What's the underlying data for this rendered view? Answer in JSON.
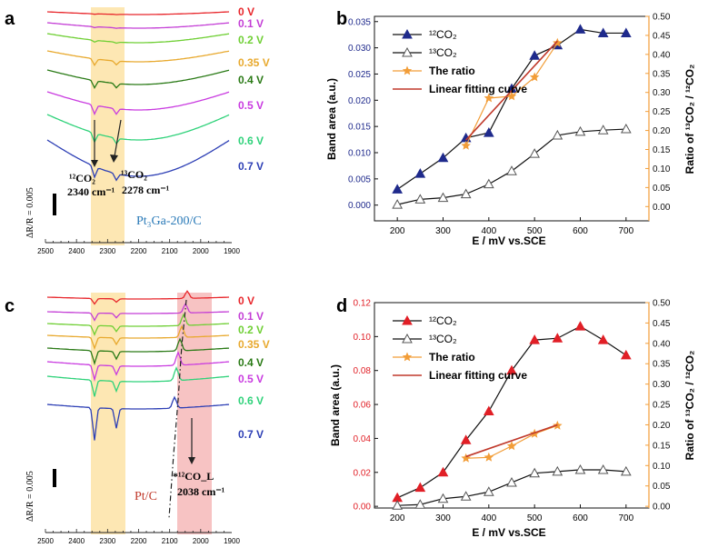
{
  "panels": {
    "a": {
      "letter": "a",
      "voltages": [
        "0 V",
        "0.1 V",
        "0.2 V",
        "0.35 V",
        "0.4 V",
        "0.5 V",
        "0.6 V",
        "0.7 V"
      ],
      "voltage_colors": [
        "#e8262b",
        "#c43fd6",
        "#6fcf34",
        "#e8a92e",
        "#2a7a16",
        "#c93be0",
        "#2fd27a",
        "#2d3fb5"
      ],
      "peak1": {
        "species": "¹²CO₂",
        "position": "2340 cm⁻¹"
      },
      "peak2": {
        "species": "¹³CO₂",
        "position": "2278 cm⁻¹"
      },
      "scale_label": "ΔR/R = 0.005",
      "sample_label": "Pt₃Ga-200/C",
      "x_ticks": [
        "2500",
        "2400",
        "2300",
        "2200",
        "2100",
        "2000",
        "1900"
      ]
    },
    "c": {
      "letter": "c",
      "voltages": [
        "0 V",
        "0.1 V",
        "0.2 V",
        "0.35 V",
        "0.4 V",
        "0.5 V",
        "0.6 V",
        "0.7 V"
      ],
      "voltage_colors": [
        "#e8262b",
        "#c43fd6",
        "#6fcf34",
        "#e8a92e",
        "#2a7a16",
        "#c93be0",
        "#2fd27a",
        "#2d3fb5"
      ],
      "peak": {
        "species": "*¹²CO_L",
        "position": "2038 cm⁻¹"
      },
      "scale_label": "ΔR/R = 0.005",
      "sample_label": "Pt/C",
      "x_ticks": [
        "2500",
        "2400",
        "2300",
        "2200",
        "2100",
        "2000",
        "1900"
      ]
    }
  },
  "colors": {
    "series_b": "#1f2a8c",
    "series_d": "#e11f26",
    "ratio": "#f29d38",
    "fit": "#c0392b",
    "highlight_yellow": "#fde7b3",
    "highlight_red": "#f7c3c3"
  },
  "chart_data": [
    {
      "panel": "b",
      "type": "line",
      "xlabel": "E / mV vs.SCE",
      "ylabel": "Band area (a.u.)",
      "y2label": "Ratio of ¹³CO₂ / ¹²CO₂",
      "x": [
        200,
        250,
        300,
        350,
        400,
        450,
        500,
        550,
        600,
        650,
        700
      ],
      "xlim": [
        150,
        750
      ],
      "x_ticks": [
        200,
        300,
        400,
        500,
        600,
        700
      ],
      "ylim": [
        -0.003,
        0.036
      ],
      "y_ticks": [
        "0.000",
        "0.005",
        "0.010",
        "0.015",
        "0.020",
        "0.025",
        "0.030",
        "0.035"
      ],
      "y2lim": [
        -0.0375,
        0.5
      ],
      "y2_ticks": [
        "0.00",
        "0.05",
        "0.10",
        "0.15",
        "0.20",
        "0.25",
        "0.30",
        "0.35",
        "0.40",
        "0.45",
        "0.50"
      ],
      "legend_position": "top-left",
      "series": [
        {
          "name": "¹²CO₂",
          "marker": "filled-triangle",
          "axis": "left",
          "values": [
            0.003,
            0.006,
            0.009,
            0.0128,
            0.0138,
            0.0222,
            0.0285,
            0.0305,
            0.0335,
            0.0328,
            0.0328
          ]
        },
        {
          "name": "¹³CO₂",
          "marker": "open-triangle",
          "axis": "left",
          "values": [
            0.0001,
            0.0011,
            0.0014,
            0.0021,
            0.004,
            0.0065,
            0.0098,
            0.0133,
            0.014,
            0.0143,
            0.0145
          ]
        }
      ],
      "ratio": {
        "name": "The ratio",
        "x": [
          350,
          400,
          450,
          500,
          550
        ],
        "values": [
          0.16,
          0.285,
          0.29,
          0.34,
          0.43
        ]
      },
      "fit": {
        "name": "Linear fitting curve",
        "x": [
          350,
          550
        ],
        "values": [
          0.175,
          0.435
        ]
      }
    },
    {
      "panel": "d",
      "type": "line",
      "xlabel": "E / mV vs.SCE",
      "ylabel": "Band area (a.u.)",
      "y2label": "Ratio of ¹³CO₂ / ¹²CO₂",
      "x": [
        200,
        250,
        300,
        350,
        400,
        450,
        500,
        550,
        600,
        650,
        700
      ],
      "xlim": [
        150,
        750
      ],
      "x_ticks": [
        200,
        300,
        400,
        500,
        600,
        700
      ],
      "ylim": [
        -0.001,
        0.12
      ],
      "y_ticks": [
        "0.00",
        "0.02",
        "0.04",
        "0.06",
        "0.08",
        "0.10",
        "0.12"
      ],
      "y2lim": [
        -0.0042,
        0.5
      ],
      "y2_ticks": [
        "0.00",
        "0.05",
        "0.10",
        "0.15",
        "0.20",
        "0.25",
        "0.30",
        "0.35",
        "0.40",
        "0.45",
        "0.50"
      ],
      "legend_position": "top-left",
      "series": [
        {
          "name": "¹²CO₂",
          "marker": "filled-triangle",
          "axis": "left",
          "values": [
            0.005,
            0.011,
            0.02,
            0.039,
            0.056,
            0.08,
            0.098,
            0.099,
            0.106,
            0.098,
            0.089
          ]
        },
        {
          "name": "¹³CO₂",
          "marker": "open-triangle",
          "axis": "left",
          "values": [
            0.0005,
            0.001,
            0.0045,
            0.0058,
            0.0085,
            0.014,
            0.0195,
            0.0205,
            0.0215,
            0.0215,
            0.0205
          ]
        }
      ],
      "ratio": {
        "name": "The ratio",
        "x": [
          350,
          400,
          450,
          500,
          550
        ],
        "values": [
          0.118,
          0.12,
          0.148,
          0.178,
          0.198
        ]
      },
      "fit": {
        "name": "Linear fitting curve",
        "x": [
          350,
          550
        ],
        "values": [
          0.122,
          0.2
        ]
      }
    }
  ]
}
